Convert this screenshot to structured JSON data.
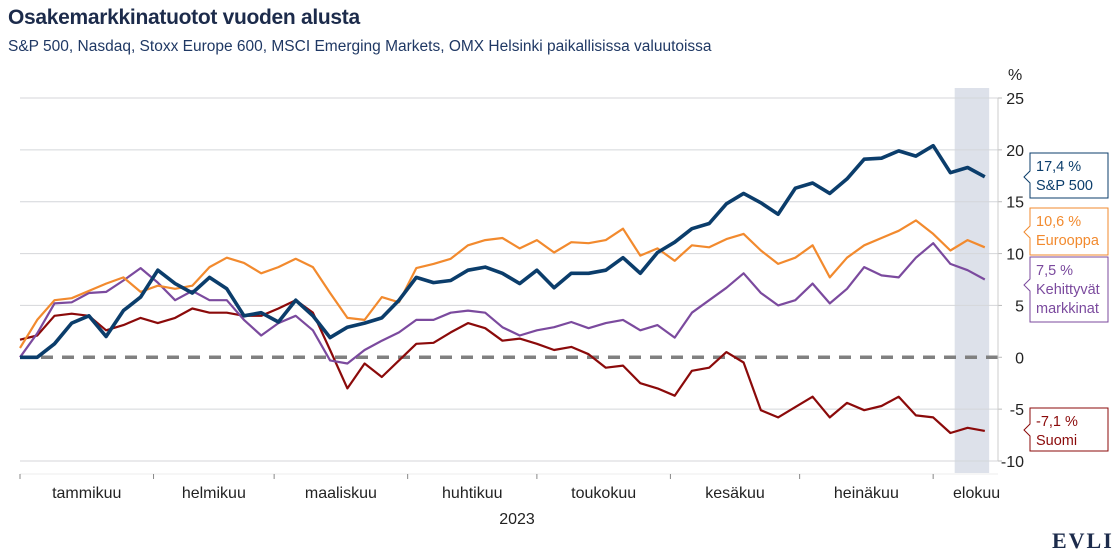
{
  "chart_data": {
    "type": "line",
    "title": "Osakemarkkinatuotot vuoden alusta",
    "subtitle": "S&P 500, Nasdaq, Stoxx Europe 600, MSCI Emerging Markets, OMX Helsinki paikallisissa valuutoissa",
    "ylabel": "%",
    "xlabel": "2023",
    "ylim": [
      -10,
      25
    ],
    "yticks": [
      25,
      20,
      15,
      10,
      5,
      0,
      -5,
      -10
    ],
    "ytick_labels": [
      "25",
      "20",
      "15",
      "10",
      "5",
      "0",
      "-5",
      "-10"
    ],
    "xlim": [
      "2023-01-01",
      "2023-08-20"
    ],
    "month_ticks": [
      "2023-01-01",
      "2023-02-01",
      "2023-03-01",
      "2023-04-01",
      "2023-05-01",
      "2023-06-01",
      "2023-07-01",
      "2023-08-01"
    ],
    "month_labels": [
      "tammikuu",
      "helmikuu",
      "maaliskuu",
      "huhtikuu",
      "toukokuu",
      "kesäkuu",
      "heinäkuu",
      "elokuu"
    ],
    "grid": true,
    "zero_line": "dashed",
    "highlight_range": [
      "2023-08-06",
      "2023-08-14"
    ],
    "highlight_color": "#dde1ea",
    "x": [
      "2023-01-01",
      "2023-01-05",
      "2023-01-09",
      "2023-01-13",
      "2023-01-17",
      "2023-01-21",
      "2023-01-25",
      "2023-01-29",
      "2023-02-02",
      "2023-02-06",
      "2023-02-10",
      "2023-02-14",
      "2023-02-18",
      "2023-02-22",
      "2023-02-26",
      "2023-03-02",
      "2023-03-06",
      "2023-03-10",
      "2023-03-14",
      "2023-03-18",
      "2023-03-22",
      "2023-03-26",
      "2023-03-30",
      "2023-04-03",
      "2023-04-07",
      "2023-04-11",
      "2023-04-15",
      "2023-04-19",
      "2023-04-23",
      "2023-04-27",
      "2023-05-01",
      "2023-05-05",
      "2023-05-09",
      "2023-05-13",
      "2023-05-17",
      "2023-05-21",
      "2023-05-25",
      "2023-05-29",
      "2023-06-02",
      "2023-06-06",
      "2023-06-10",
      "2023-06-14",
      "2023-06-18",
      "2023-06-22",
      "2023-06-26",
      "2023-06-30",
      "2023-07-04",
      "2023-07-08",
      "2023-07-12",
      "2023-07-16",
      "2023-07-20",
      "2023-07-24",
      "2023-07-28",
      "2023-08-01",
      "2023-08-05",
      "2023-08-09",
      "2023-08-13"
    ],
    "series": [
      {
        "name": "S&P 500",
        "end_label": "17,4 %",
        "color": "#0b3d6b",
        "values": [
          0,
          0,
          1.3,
          3.3,
          4.0,
          2.0,
          4.5,
          5.8,
          8.4,
          7.1,
          6.2,
          7.7,
          6.6,
          4.0,
          4.3,
          3.4,
          5.5,
          4.0,
          1.9,
          2.9,
          3.3,
          3.8,
          5.5,
          7.7,
          7.2,
          7.4,
          8.4,
          8.7,
          8.1,
          7.1,
          8.4,
          6.7,
          8.1,
          8.1,
          8.4,
          9.6,
          8.1,
          10.1,
          11.1,
          12.4,
          12.9,
          14.8,
          15.8,
          14.9,
          13.8,
          16.3,
          16.8,
          15.8,
          17.2,
          19.1,
          19.2,
          19.9,
          19.4,
          20.4,
          17.8,
          18.3,
          17.4
        ]
      },
      {
        "name": "Eurooppa",
        "end_label": "10,6 %",
        "color": "#f28a2e",
        "values": [
          0.9,
          3.6,
          5.5,
          5.7,
          6.4,
          7.1,
          7.7,
          6.3,
          6.9,
          6.6,
          6.9,
          8.7,
          9.6,
          9.1,
          8.1,
          8.7,
          9.5,
          8.7,
          6.2,
          3.8,
          3.6,
          5.8,
          5.3,
          8.6,
          9.0,
          9.5,
          10.8,
          11.3,
          11.5,
          10.5,
          11.3,
          10.1,
          11.1,
          11.0,
          11.3,
          12.4,
          9.8,
          10.5,
          9.3,
          10.8,
          10.6,
          11.4,
          11.9,
          10.3,
          9.0,
          9.6,
          10.8,
          7.7,
          9.6,
          10.8,
          11.5,
          12.2,
          13.2,
          11.9,
          10.3,
          11.3,
          10.6
        ]
      },
      {
        "name": "Kehittyvät markkinat",
        "end_label": "7,5 %",
        "color": "#7b4a9e",
        "values": [
          0,
          2.3,
          5.2,
          5.3,
          6.2,
          6.3,
          7.4,
          8.6,
          7.2,
          5.5,
          6.4,
          5.5,
          5.5,
          3.6,
          2.1,
          3.3,
          4.0,
          2.6,
          -0.3,
          -0.6,
          0.7,
          1.6,
          2.4,
          3.6,
          3.6,
          4.3,
          4.5,
          4.3,
          2.9,
          2.1,
          2.6,
          2.9,
          3.4,
          2.8,
          3.3,
          3.6,
          2.6,
          3.1,
          1.9,
          4.3,
          5.5,
          6.7,
          8.1,
          6.2,
          5.0,
          5.5,
          7.1,
          5.2,
          6.6,
          8.7,
          7.9,
          7.7,
          9.6,
          11.0,
          9.0,
          8.4,
          7.5
        ]
      },
      {
        "name": "Suomi",
        "end_label": "-7,1 %",
        "color": "#8b0a0a",
        "values": [
          1.7,
          2.1,
          4.0,
          4.2,
          4.0,
          2.6,
          3.1,
          3.8,
          3.3,
          3.8,
          4.7,
          4.3,
          4.3,
          4.0,
          4.0,
          4.7,
          5.5,
          4.3,
          0.7,
          -3.0,
          -0.6,
          -1.9,
          -0.3,
          1.3,
          1.4,
          2.4,
          3.3,
          2.8,
          1.6,
          1.8,
          1.3,
          0.7,
          1.0,
          0.3,
          -1.0,
          -0.8,
          -2.5,
          -3.0,
          -3.7,
          -1.3,
          -1.0,
          0.5,
          -0.5,
          -5.1,
          -5.8,
          -4.8,
          -3.8,
          -5.8,
          -4.4,
          -5.1,
          -4.7,
          -3.8,
          -5.6,
          -5.8,
          -7.3,
          -6.8,
          -7.1
        ]
      }
    ]
  },
  "logo": "EVLI"
}
